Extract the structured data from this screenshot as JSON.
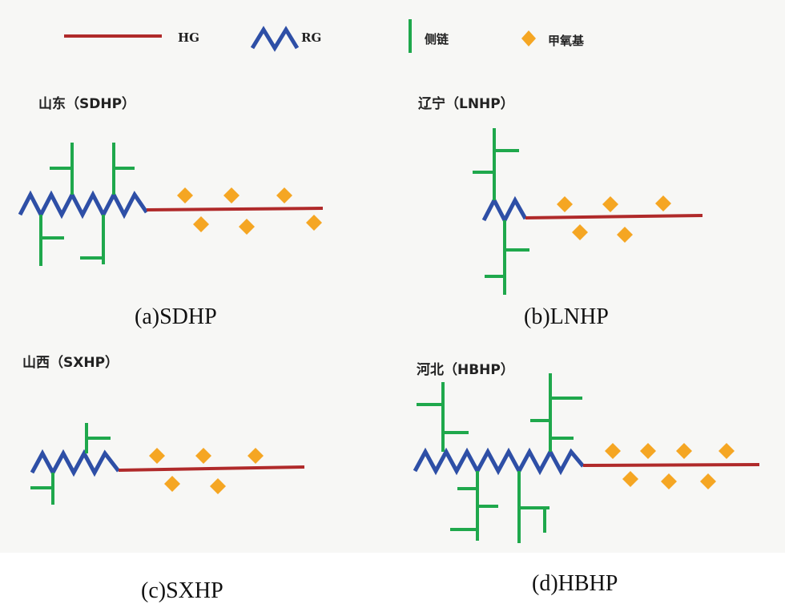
{
  "legend": {
    "items": [
      "HG",
      "RG",
      "侧链",
      "甲氧基"
    ]
  },
  "panels": [
    {
      "title": "山东（SDHP）",
      "caption": "(a)SDHP"
    },
    {
      "title": "辽宁（LNHP）",
      "caption": "(b)LNHP"
    },
    {
      "title": "山西（SXHP）",
      "caption": "(c)SXHP"
    },
    {
      "title": "河北（HBHP）",
      "caption": "(d)HBHP"
    }
  ]
}
